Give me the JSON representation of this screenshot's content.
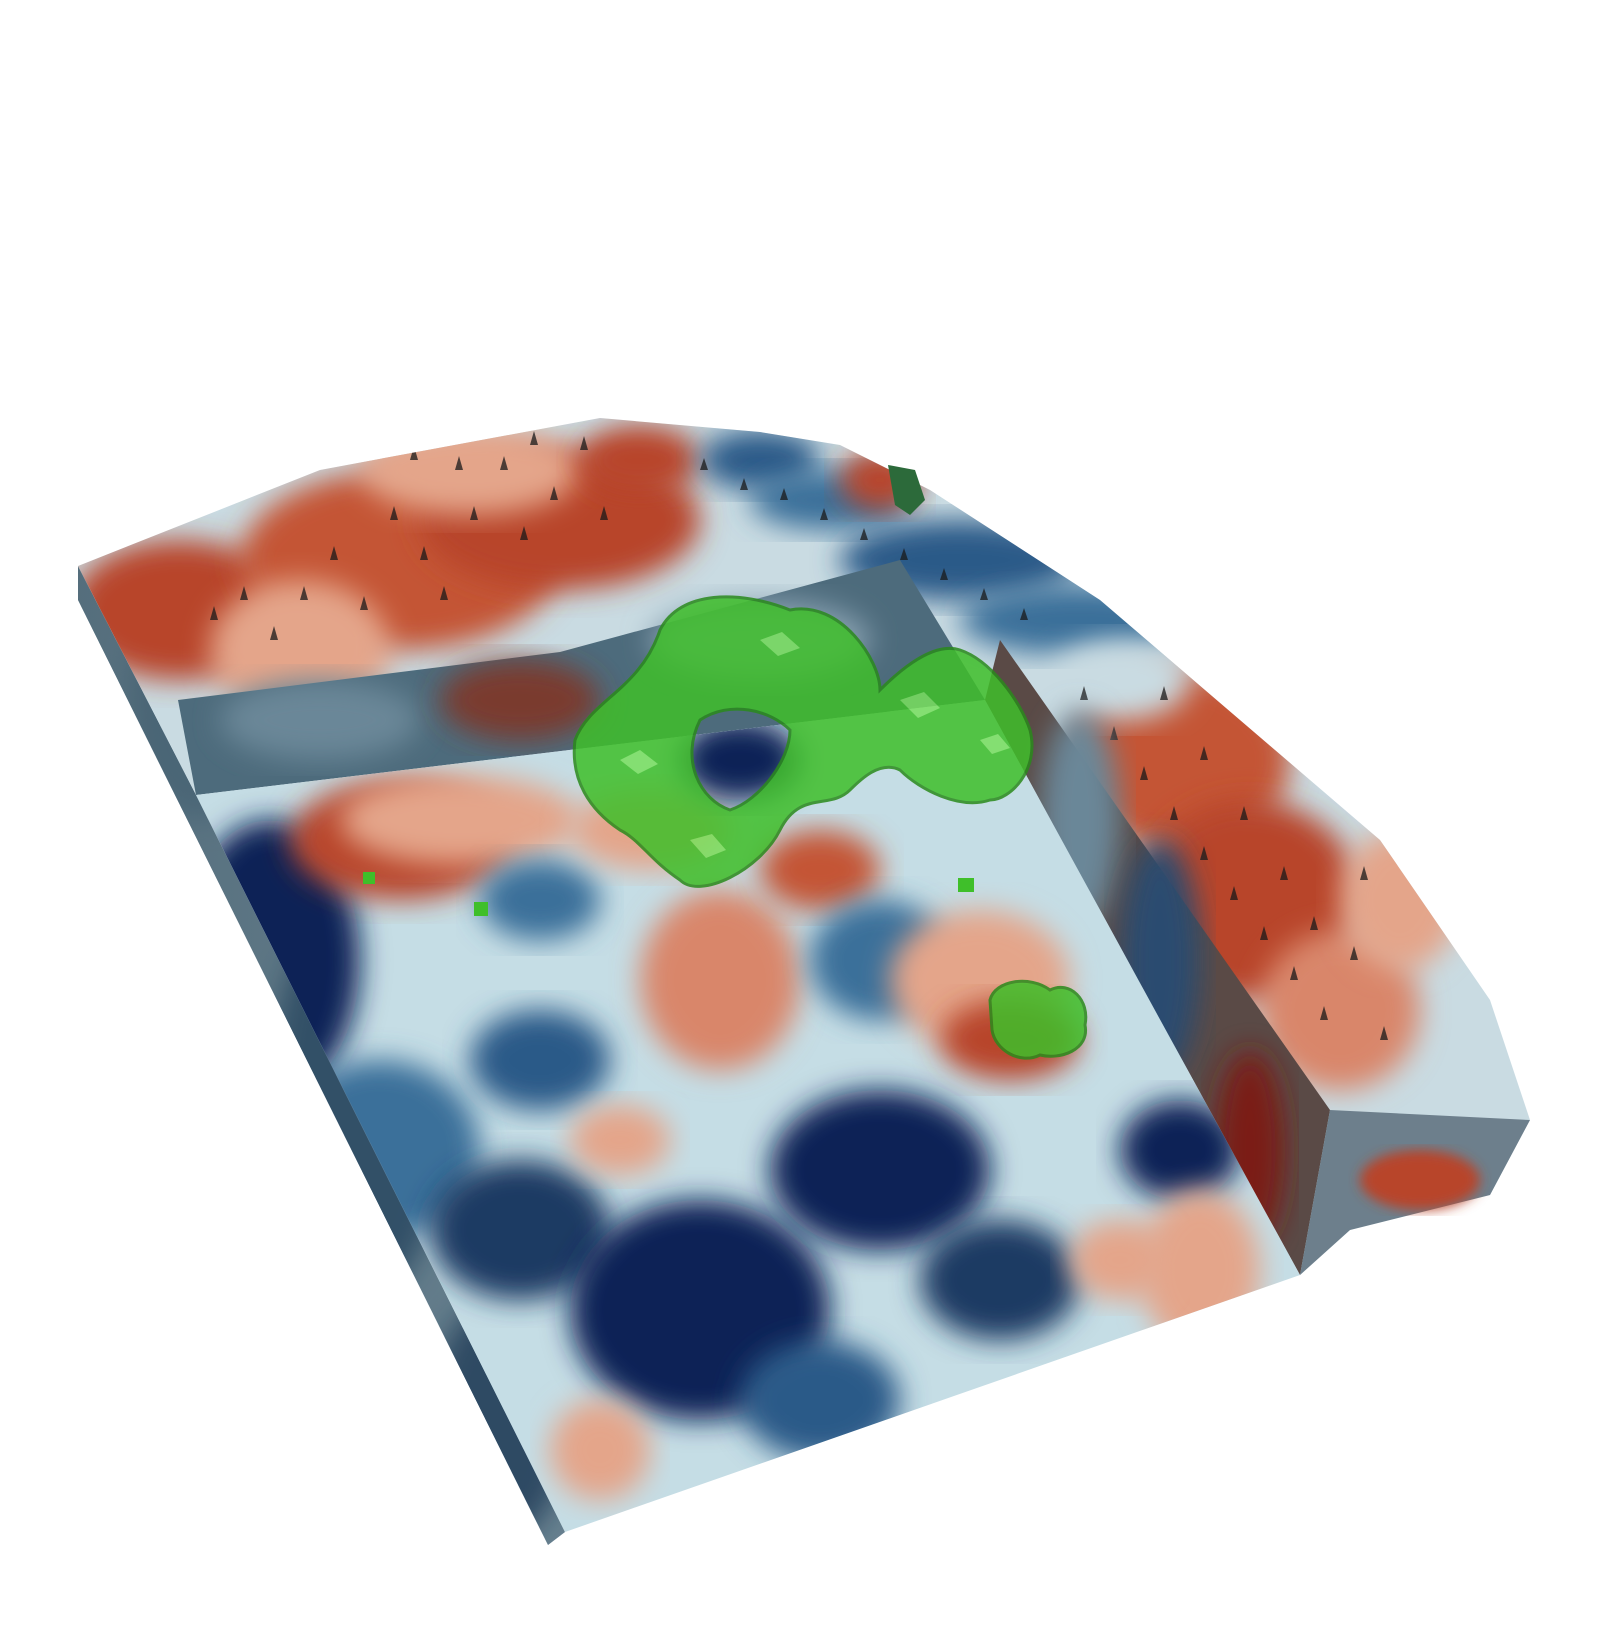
{
  "scene": {
    "background_color": "#ffffff",
    "colormap": {
      "deep_blue": "#0a2356",
      "mid_blue": "#3b6f9a",
      "pale_blue": "#c5dde5",
      "neutral": "#eef0ec",
      "salmon": "#e4a58a",
      "red": "#b8442c",
      "dark_red": "#7a1f16"
    },
    "side_shade_color": "#3b5563",
    "isosurface_color": "#3fbf2a",
    "isosurface_opacity": 0.8
  }
}
